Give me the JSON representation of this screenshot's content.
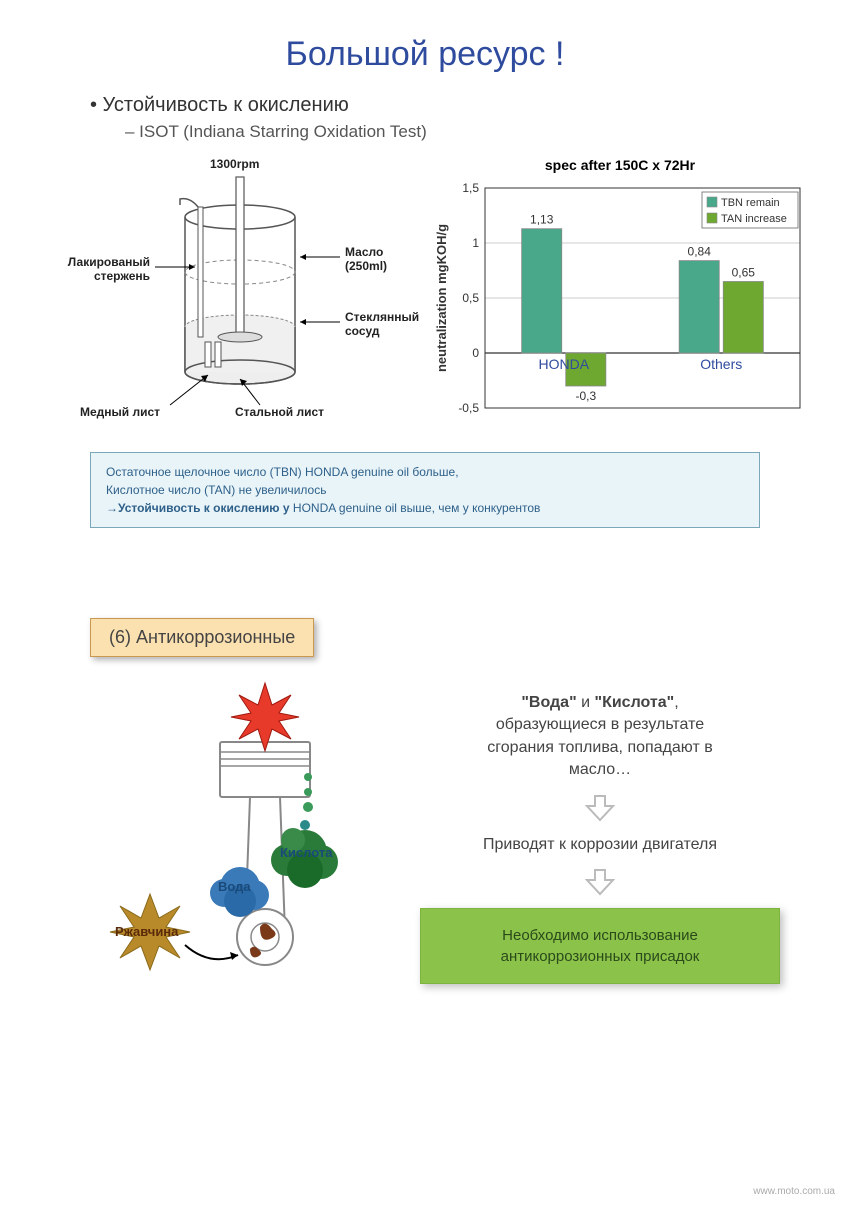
{
  "title": "Большой ресурс !",
  "bullet": "• Устойчивость к окислению",
  "subline": "– ISOT (Indiana Starring Oxidation Test)",
  "diagram": {
    "rpm": "1300rpm",
    "rod_label": "Лакированый\nстержень",
    "oil_label": "Масло\n(250ml)",
    "vessel_label": "Стеклянный\nсосуд",
    "copper_label": "Медный лист",
    "steel_label": "Стальной лист",
    "vessel_stroke": "#555555",
    "liquid_fill": "#e8e8e8"
  },
  "chart": {
    "title": "spec after 150C x 72Hr",
    "ylabel": "neutralization mgKOH/g",
    "ylim": [
      -0.5,
      1.5
    ],
    "yticks": [
      -0.5,
      0,
      0.5,
      1,
      1.5
    ],
    "categories": [
      "HONDA",
      "Others"
    ],
    "series": [
      {
        "name": "TBN remain",
        "color": "#4aa88a",
        "values": [
          1.13,
          0.84
        ]
      },
      {
        "name": "TAN increase",
        "color": "#6fa830",
        "values": [
          -0.3,
          0.65
        ]
      }
    ],
    "value_labels": [
      "1,13",
      "-0,3",
      "0,84",
      "0,65"
    ],
    "grid_color": "#cccccc",
    "axis_color": "#333333",
    "cat_color": "#2e4b9e",
    "bar_stroke": "#888888",
    "legend_border": "#666666"
  },
  "info_box": {
    "line1": "Остаточное щелочное число (TBN)  HONDA genuine oil больше,",
    "line2": "Кислотное число (TAN) не увеличилось",
    "line3_prefix": "→",
    "line3_bold": "Устойчивость к окислению у",
    "line3_rest": " HONDA genuine oil выше, чем у конкурентов"
  },
  "section6": "(6) Антикоррозионные",
  "piston": {
    "water": "Вода",
    "acid": "Кислота",
    "rust": "Ржавчина",
    "burst_color": "#e83a2a",
    "water_cloud": "#3a7ab8",
    "acid_cloud": "#2a7a3a",
    "rust_star": "#b88a2a",
    "piston_stroke": "#888888"
  },
  "text_col": {
    "p1_bold1": "\"Вода\"",
    "p1_mid": " и ",
    "p1_bold2": "\"Кислота\"",
    "p1_rest": ",\nобразующиеся в результате\nсгорания топлива, попадают в\nмасло…",
    "p2": "Приводят к коррозии двигателя",
    "green": "Необходимо использование\nантикоррозионных присадок"
  },
  "arrow_color": "#bbbbbb",
  "footer": "www.moto.com.ua"
}
